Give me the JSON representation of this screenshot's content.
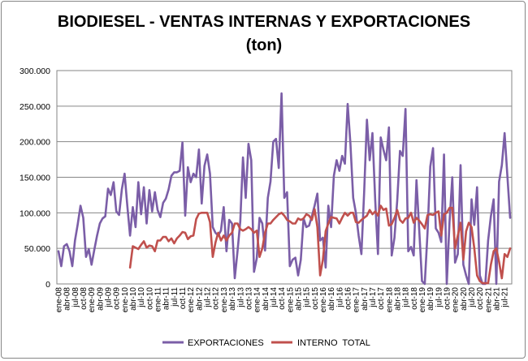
{
  "chart_data": {
    "type": "line",
    "title": "BIODIESEL - VENTAS INTERNAS Y EXPORTACIONES",
    "subtitle": "(ton)",
    "xlabel": "",
    "ylabel": "",
    "ylim": [
      0,
      300000
    ],
    "yticks": [
      0,
      50000,
      100000,
      150000,
      200000,
      250000,
      300000
    ],
    "ytick_labels": [
      "0",
      "50.000",
      "100.000",
      "150.000",
      "200.000",
      "250.000",
      "300.000"
    ],
    "grid": true,
    "legend_position": "bottom",
    "x_start": "ene-08",
    "x_frequency": "monthly",
    "n_points": 165,
    "xtick_every": 3,
    "xtick_labels": [
      "ene-08",
      "abr-08",
      "jul-08",
      "oct-08",
      "ene-09",
      "abr-09",
      "jul-09",
      "oct-09",
      "ene-10",
      "abr-10",
      "jul-10",
      "oct-10",
      "ene-11",
      "abr-11",
      "jul-11",
      "oct-11",
      "ene-12",
      "abr-12",
      "jul-12",
      "oct-12",
      "ene-13",
      "abr-13",
      "jul-13",
      "oct-13",
      "ene-14",
      "abr-14",
      "jul-14",
      "oct-14",
      "ene-15",
      "abr-15",
      "jul-15",
      "oct-15",
      "ene-16",
      "abr-16",
      "jul-16",
      "oct-16",
      "ene-17",
      "abr-17",
      "jul-17",
      "oct-17",
      "ene-18",
      "abr-18",
      "jul-18",
      "oct-18",
      "ene-19",
      "abr-19",
      "jul-19",
      "oct-19",
      "ene-20",
      "abr-20",
      "jul-20",
      "oct-20",
      "ene-21",
      "abr-21",
      "jul-21"
    ],
    "series": [
      {
        "name": "EXPORTACIONES",
        "color": "#7B5EA7",
        "values_thousand_ton": [
          46,
          25,
          53,
          56,
          46,
          25,
          61,
          84,
          110,
          93,
          38,
          49,
          27,
          48,
          68,
          85,
          92,
          95,
          134,
          125,
          143,
          102,
          97,
          133,
          155,
          109,
          68,
          108,
          80,
          143,
          98,
          136,
          85,
          132,
          102,
          129,
          104,
          94,
          114,
          120,
          133,
          152,
          157,
          157,
          159,
          199,
          96,
          164,
          143,
          155,
          150,
          189,
          113,
          166,
          182,
          155,
          80,
          72,
          68,
          75,
          108,
          46,
          90,
          85,
          8,
          46,
          88,
          178,
          121,
          197,
          174,
          17,
          36,
          93,
          85,
          47,
          121,
          144,
          200,
          204,
          163,
          268,
          121,
          129,
          25,
          34,
          37,
          12,
          34,
          92,
          80,
          82,
          95,
          110,
          127,
          61,
          65,
          23,
          110,
          80,
          152,
          174,
          159,
          180,
          169,
          253,
          197,
          121,
          100,
          68,
          42,
          129,
          231,
          174,
          212,
          118,
          42,
          206,
          189,
          174,
          220,
          40,
          65,
          117,
          187,
          180,
          246,
          46,
          52,
          40,
          146,
          76,
          4,
          0,
          72,
          165,
          191,
          78,
          72,
          59,
          182,
          0,
          87,
          150,
          30,
          42,
          167,
          27,
          12,
          0,
          119,
          83,
          136,
          12,
          0,
          0,
          61,
          95,
          119,
          0,
          144,
          167,
          212,
          152,
          93
        ]
      },
      {
        "name": "INTERNO  TOTAL",
        "color": "#C0504D",
        "values_thousand_ton": [
          null,
          null,
          null,
          null,
          null,
          null,
          null,
          null,
          null,
          null,
          null,
          null,
          null,
          null,
          null,
          null,
          null,
          null,
          null,
          null,
          null,
          null,
          null,
          null,
          null,
          null,
          23,
          53,
          51,
          49,
          55,
          60,
          51,
          54,
          53,
          46,
          61,
          61,
          66,
          66,
          60,
          64,
          57,
          64,
          68,
          73,
          72,
          63,
          67,
          68,
          91,
          99,
          100,
          100,
          100,
          87,
          38,
          58,
          72,
          61,
          68,
          61,
          68,
          72,
          85,
          85,
          77,
          75,
          77,
          80,
          77,
          72,
          75,
          38,
          50,
          72,
          85,
          85,
          90,
          94,
          98,
          100,
          96,
          90,
          88,
          85,
          85,
          92,
          90,
          92,
          98,
          96,
          90,
          105,
          80,
          12,
          34,
          74,
          85,
          94,
          93,
          92,
          85,
          93,
          100,
          96,
          100,
          100,
          87,
          86,
          90,
          93,
          96,
          104,
          98,
          102,
          96,
          110,
          104,
          106,
          82,
          84,
          93,
          104,
          90,
          86,
          92,
          93,
          100,
          86,
          93,
          89,
          84,
          78,
          97,
          98,
          97,
          100,
          102,
          68,
          98,
          100,
          107,
          107,
          50,
          68,
          86,
          34,
          74,
          86,
          80,
          50,
          12,
          4,
          1,
          1,
          1,
          27,
          46,
          50,
          31,
          8,
          42,
          38,
          50
        ]
      }
    ]
  }
}
